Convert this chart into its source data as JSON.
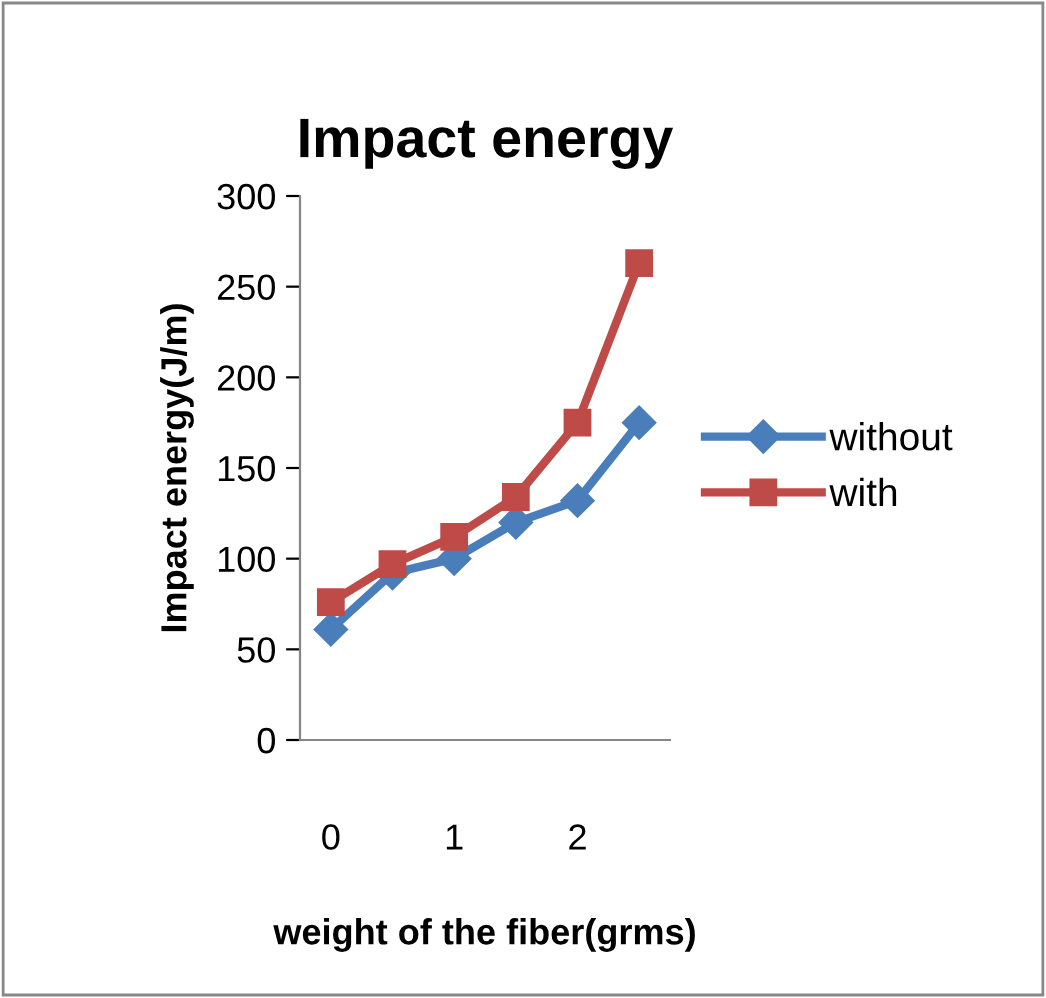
{
  "chart_data": {
    "type": "line",
    "title": "Impact energy",
    "xlabel": "weight of the fiber(grms)",
    "ylabel": "Impact energy(J/m)",
    "categories": [
      "0",
      null,
      "1",
      null,
      "2",
      null
    ],
    "series": [
      {
        "name": "without",
        "color": "#4a7ebb",
        "marker": "diamond",
        "values": [
          61,
          92,
          100,
          120,
          132,
          175
        ]
      },
      {
        "name": "with",
        "color": "#be4b48",
        "marker": "square",
        "values": [
          76,
          97,
          112,
          134,
          175,
          263
        ]
      }
    ],
    "ylim": [
      0,
      300
    ],
    "yticks": [
      0,
      50,
      100,
      150,
      200,
      250,
      300
    ],
    "grid": false,
    "legend": "right"
  }
}
